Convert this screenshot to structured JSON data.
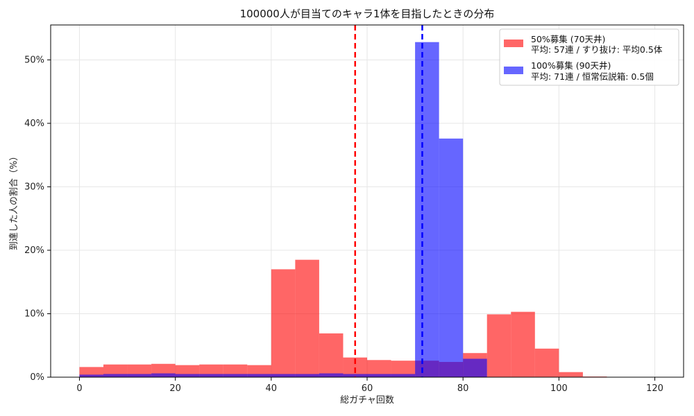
{
  "chart_data": {
    "type": "bar",
    "title": "100000人が目当てのキャラ1体を目指したときの分布",
    "xlabel": "総ガチャ回数",
    "ylabel": "到達した人の割合（%）",
    "xlim": [
      -6,
      126
    ],
    "ylim": [
      0,
      55.5
    ],
    "xticks": [
      0,
      20,
      40,
      60,
      80,
      100,
      120
    ],
    "yticks": [
      0,
      10,
      20,
      30,
      40,
      50
    ],
    "ytick_labels": [
      "0%",
      "10%",
      "20%",
      "30%",
      "40%",
      "50%"
    ],
    "grid": true,
    "legend_position": "top-right",
    "bin_edges": [
      0,
      5,
      10,
      15,
      20,
      25,
      30,
      35,
      40,
      45,
      50,
      55,
      60,
      65,
      70,
      75,
      80,
      85,
      90,
      95,
      100,
      105,
      110,
      115,
      120
    ],
    "series": [
      {
        "name": "50%募集 (70天井)",
        "legend_line2": "平均: 57連 / すり抜け: 平均0.5体",
        "color": "#ff0000",
        "opacity": 0.6,
        "values": [
          1.6,
          2.0,
          2.0,
          2.1,
          1.9,
          2.0,
          2.0,
          1.9,
          17.0,
          18.5,
          6.9,
          3.1,
          2.7,
          2.6,
          2.6,
          2.4,
          3.8,
          9.9,
          10.3,
          4.5,
          0.8,
          0.1,
          0,
          0
        ]
      },
      {
        "name": "100%募集 (90天井)",
        "legend_line2": "平均: 71連 / 恒常伝説箱: 0.5個",
        "color": "#0000ff",
        "opacity": 0.6,
        "values": [
          0.4,
          0.5,
          0.5,
          0.6,
          0.5,
          0.5,
          0.5,
          0.5,
          0.5,
          0.5,
          0.6,
          0.5,
          0.5,
          0.5,
          52.8,
          37.6,
          2.9,
          0,
          0,
          0,
          0,
          0,
          0,
          0
        ]
      }
    ],
    "mean_lines": [
      {
        "x": 57.5,
        "color": "#ff0000"
      },
      {
        "x": 71.5,
        "color": "#0000ff"
      }
    ]
  }
}
